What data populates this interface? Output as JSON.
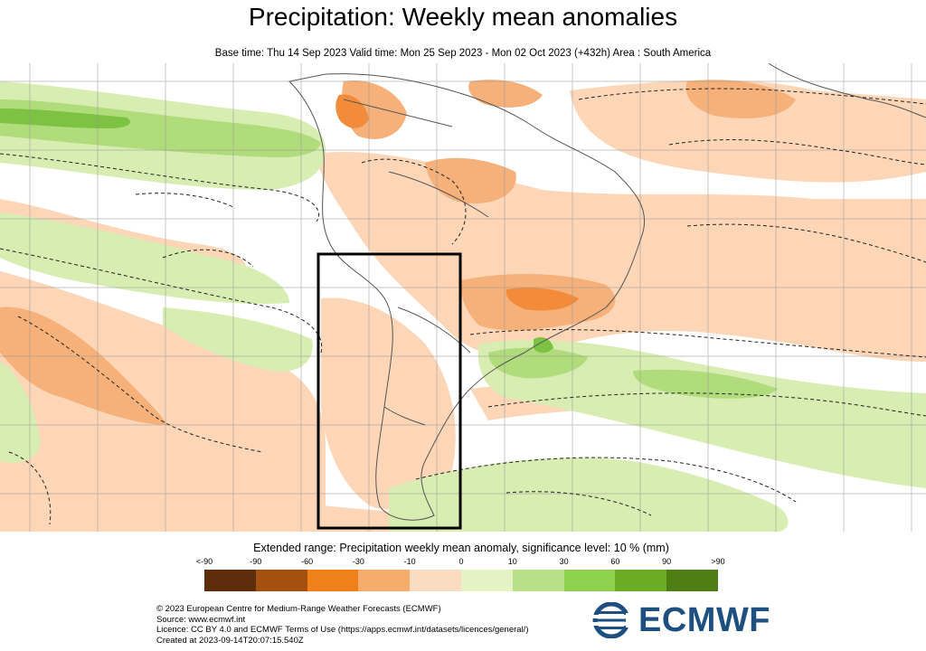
{
  "title": "Precipitation: Weekly mean anomalies",
  "subtitle": "Base time: Thu 14 Sep 2023 Valid time: Mon 25 Sep 2023 - Mon 02 Oct 2023 (+432h) Area : South America",
  "legend": {
    "title": "Extended range: Precipitation weekly mean anomaly, significance level: 10 % (mm)",
    "ticks": [
      "<-90",
      "-90",
      "-60",
      "-30",
      "-10",
      "0",
      "10",
      "30",
      "60",
      "90",
      ">90"
    ],
    "colors": [
      "#5e2d0c",
      "#a4500f",
      "#f08019",
      "#f6ad6c",
      "#fcdcc0",
      "#e4f2c4",
      "#b7df87",
      "#8fd04d",
      "#6cac24",
      "#4e7d14"
    ]
  },
  "map": {
    "colors": {
      "dry_weak": "#fcd6b6",
      "dry_moderate": "#f6b07a",
      "dry_strong": "#f28c3a",
      "wet_weak": "#d7edb2",
      "wet_moderate": "#b0dc7c",
      "wet_strong": "#7ec243",
      "box": "#000000"
    },
    "highlight_box": "Chile / Argentina region box"
  },
  "footer": {
    "lines": [
      "© 2023 European Centre for Medium-Range Weather Forecasts (ECMWF)",
      "Source: www.ecmwf.int",
      "Licence: CC BY 4.0 and ECMWF Terms of Use (https://apps.ecmwf.int/datasets/licences/general/)",
      "Created at 2023-09-14T20:07:15.540Z"
    ]
  },
  "logo": {
    "text": "ECMWF",
    "icon": "ecmwf-logo-icon"
  }
}
